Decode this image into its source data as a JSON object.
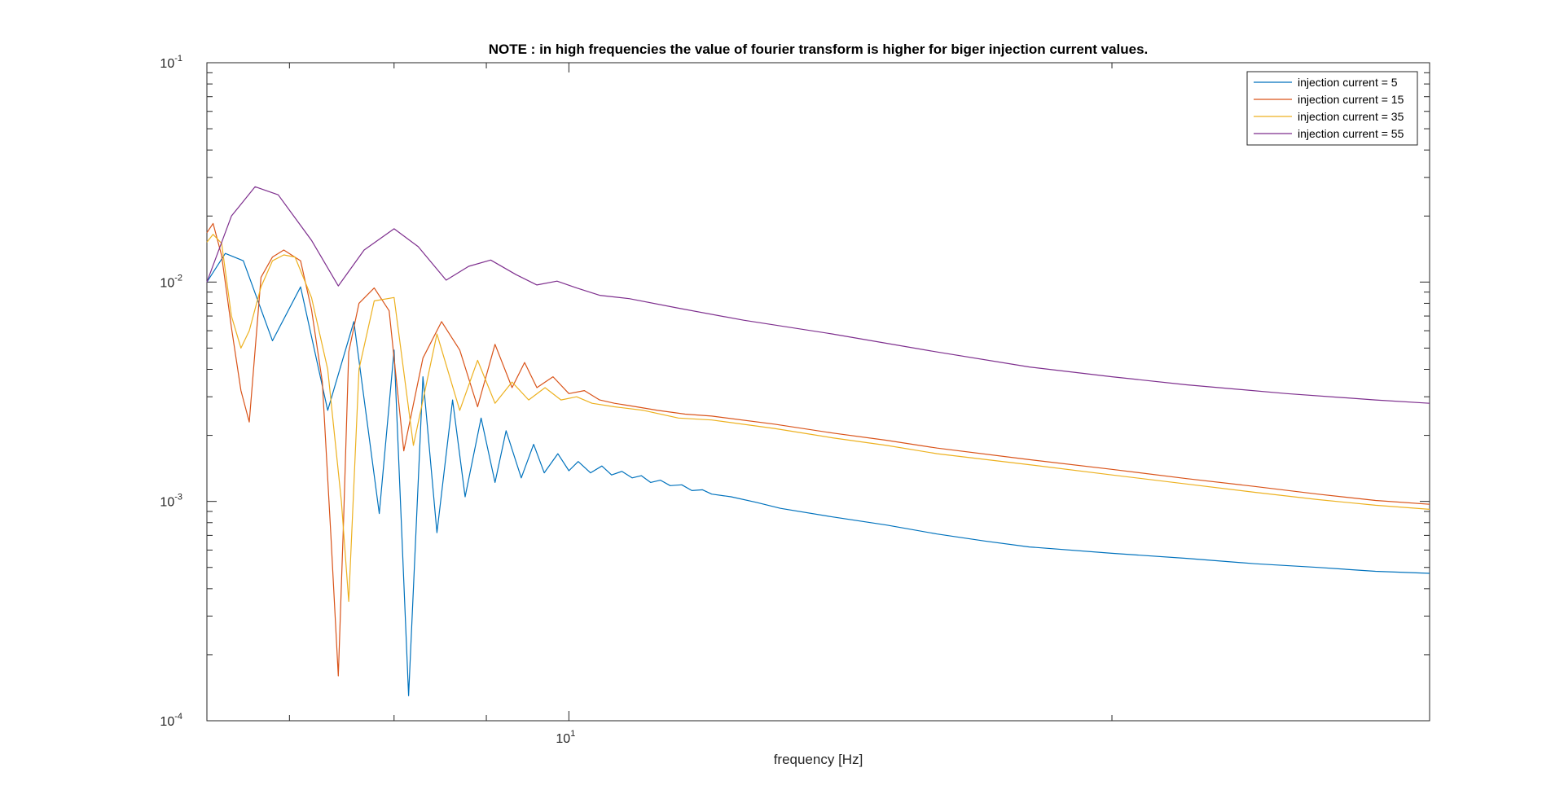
{
  "chart_data": {
    "type": "line",
    "title": "NOTE : in high frequencies the value of fourier transform is higher for biger injection current values.",
    "xlabel": "frequency [Hz]",
    "ylabel": "",
    "x_scale": "log",
    "y_scale": "log",
    "xlim": [
      6.3,
      30
    ],
    "ylim": [
      0.0001,
      0.1
    ],
    "x_ticks": [
      {
        "value": 10,
        "base": "10",
        "exp": "1"
      }
    ],
    "y_ticks": [
      {
        "value": 0.1,
        "base": "10",
        "exp": "-1"
      },
      {
        "value": 0.01,
        "base": "10",
        "exp": "-2"
      },
      {
        "value": 0.001,
        "base": "10",
        "exp": "-3"
      },
      {
        "value": 0.0001,
        "base": "10",
        "exp": "-4"
      }
    ],
    "grid": false,
    "legend_position": "top-right",
    "series": [
      {
        "name": "injection current = 5",
        "color": "#0072BD",
        "x": [
          6.3,
          6.45,
          6.6,
          6.85,
          7.1,
          7.35,
          7.6,
          7.85,
          8.0,
          8.15,
          8.3,
          8.45,
          8.62,
          8.76,
          8.94,
          9.1,
          9.23,
          9.41,
          9.56,
          9.69,
          9.86,
          10.0,
          10.12,
          10.28,
          10.43,
          10.56,
          10.7,
          10.84,
          10.97,
          11.1,
          11.24,
          11.38,
          11.55,
          11.7,
          11.86,
          12.0,
          12.3,
          12.7,
          13.1,
          14,
          15,
          16,
          17,
          18,
          20,
          22,
          24,
          26,
          28,
          30
        ],
        "y": [
          0.01,
          0.0135,
          0.0125,
          0.0054,
          0.0095,
          0.0026,
          0.0066,
          0.00088,
          0.0049,
          0.00013,
          0.0037,
          0.00072,
          0.0029,
          0.00105,
          0.0024,
          0.00122,
          0.0021,
          0.00128,
          0.00182,
          0.00135,
          0.00165,
          0.00138,
          0.00152,
          0.00135,
          0.00145,
          0.00132,
          0.00137,
          0.00128,
          0.00131,
          0.00122,
          0.00125,
          0.00118,
          0.00119,
          0.00112,
          0.00113,
          0.00108,
          0.00105,
          0.00099,
          0.00093,
          0.00085,
          0.00078,
          0.00071,
          0.00066,
          0.00062,
          0.00058,
          0.00055,
          0.00052,
          0.0005,
          0.00048,
          0.00047
        ]
      },
      {
        "name": "injection current = 15",
        "color": "#D95319",
        "x": [
          6.3,
          6.35,
          6.42,
          6.5,
          6.58,
          6.65,
          6.75,
          6.85,
          6.95,
          7.1,
          7.2,
          7.3,
          7.38,
          7.45,
          7.5,
          7.55,
          7.65,
          7.8,
          7.95,
          8.1,
          8.3,
          8.5,
          8.7,
          8.9,
          9.1,
          9.3,
          9.45,
          9.6,
          9.8,
          10.0,
          10.2,
          10.4,
          10.6,
          10.9,
          11.2,
          11.6,
          12.0,
          13,
          14,
          15,
          16,
          18,
          20,
          22,
          24,
          26,
          28,
          30
        ],
        "y": [
          0.0168,
          0.0185,
          0.0132,
          0.0062,
          0.0032,
          0.0023,
          0.0105,
          0.013,
          0.014,
          0.0125,
          0.0075,
          0.0035,
          0.0007,
          0.00016,
          0.0008,
          0.0048,
          0.008,
          0.0094,
          0.0074,
          0.0017,
          0.0045,
          0.0066,
          0.0049,
          0.0027,
          0.0052,
          0.0033,
          0.0043,
          0.0033,
          0.0037,
          0.0031,
          0.0032,
          0.0029,
          0.0028,
          0.0027,
          0.0026,
          0.0025,
          0.00245,
          0.00225,
          0.00205,
          0.0019,
          0.00175,
          0.00155,
          0.0014,
          0.00127,
          0.00117,
          0.00108,
          0.00101,
          0.00097
        ]
      },
      {
        "name": "injection current = 35",
        "color": "#EDB120",
        "x": [
          6.3,
          6.35,
          6.42,
          6.5,
          6.58,
          6.65,
          6.75,
          6.85,
          6.95,
          7.05,
          7.2,
          7.35,
          7.48,
          7.55,
          7.65,
          7.8,
          8.0,
          8.2,
          8.45,
          8.7,
          8.9,
          9.1,
          9.3,
          9.5,
          9.7,
          9.9,
          10.1,
          10.3,
          10.6,
          11.0,
          11.5,
          12.0,
          13,
          14,
          15,
          16,
          18,
          20,
          22,
          24,
          26,
          28,
          30
        ],
        "y": [
          0.0152,
          0.0165,
          0.015,
          0.007,
          0.005,
          0.006,
          0.0095,
          0.0125,
          0.0133,
          0.013,
          0.0085,
          0.004,
          0.001,
          0.00035,
          0.004,
          0.0082,
          0.0085,
          0.0018,
          0.0058,
          0.0026,
          0.0044,
          0.0028,
          0.0035,
          0.0029,
          0.0033,
          0.0029,
          0.003,
          0.0028,
          0.0027,
          0.0026,
          0.0024,
          0.00235,
          0.00215,
          0.00195,
          0.0018,
          0.00165,
          0.00147,
          0.00132,
          0.0012,
          0.0011,
          0.00102,
          0.00096,
          0.00092
        ]
      },
      {
        "name": "injection current = 55",
        "color": "#7E2F8E",
        "x": [
          6.3,
          6.5,
          6.7,
          6.9,
          7.2,
          7.45,
          7.7,
          8.0,
          8.25,
          8.55,
          8.8,
          9.05,
          9.35,
          9.6,
          9.85,
          10.1,
          10.4,
          10.8,
          11.5,
          12.5,
          14,
          16,
          18,
          20,
          22,
          25,
          28,
          30
        ],
        "y": [
          0.01,
          0.02,
          0.0272,
          0.025,
          0.0155,
          0.0096,
          0.014,
          0.0175,
          0.0145,
          0.0102,
          0.0118,
          0.0126,
          0.0108,
          0.0097,
          0.0101,
          0.0094,
          0.0087,
          0.0084,
          0.0076,
          0.0067,
          0.0058,
          0.0048,
          0.0041,
          0.0037,
          0.0034,
          0.0031,
          0.0029,
          0.0028
        ]
      }
    ]
  }
}
